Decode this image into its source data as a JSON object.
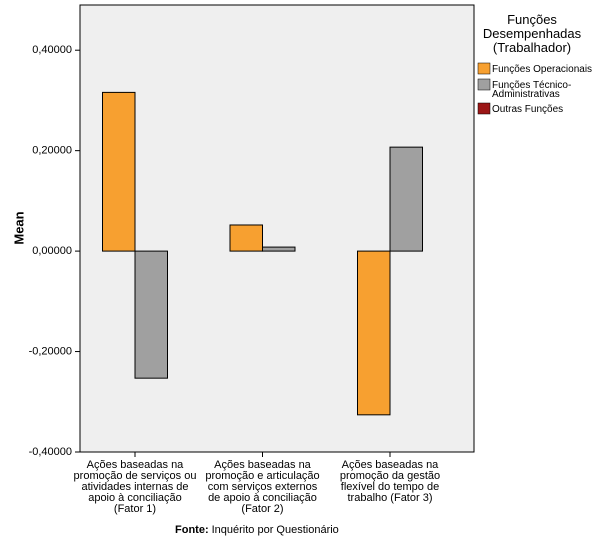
{
  "chart_data": {
    "type": "bar",
    "y_label": "Mean",
    "categories": [
      "Ações baseadas na\npromoção de serviços ou\natividades internas de\napoio à conciliação\n(Fator 1)",
      "Ações baseadas na\npromoção e articulação\ncom serviços externos\nde apoio à conciliação\n(Fator 2)",
      "Ações baseadas na\npromoção da gestão\nflexível do tempo de\ntrabalho (Fator 3)"
    ],
    "series": [
      {
        "name": "Funções Operacionais",
        "color": "#f7a030",
        "values": [
          0.316,
          0.052,
          -0.326
        ]
      },
      {
        "name": "Funções Técnico-\nAdministrativas",
        "color": "#a0a0a0",
        "values": [
          -0.253,
          0.008,
          0.207
        ]
      },
      {
        "name": "Outras Funções",
        "color": "#9b1616",
        "values": [
          null,
          null,
          null
        ]
      }
    ],
    "legend_title": "Funções\nDesempenhadas\n(Trabalhador)",
    "ylim": [
      -0.4,
      0.49
    ],
    "yticks": [
      {
        "value": -0.4,
        "label": "-0,40000"
      },
      {
        "value": -0.2,
        "label": "-0,20000"
      },
      {
        "value": 0,
        "label": "0,00000"
      },
      {
        "value": 0.2,
        "label": "0,20000"
      },
      {
        "value": 0.4,
        "label": "0,40000"
      }
    ],
    "source_label": "Fonte:",
    "source": "Inquérito por Questionário"
  }
}
